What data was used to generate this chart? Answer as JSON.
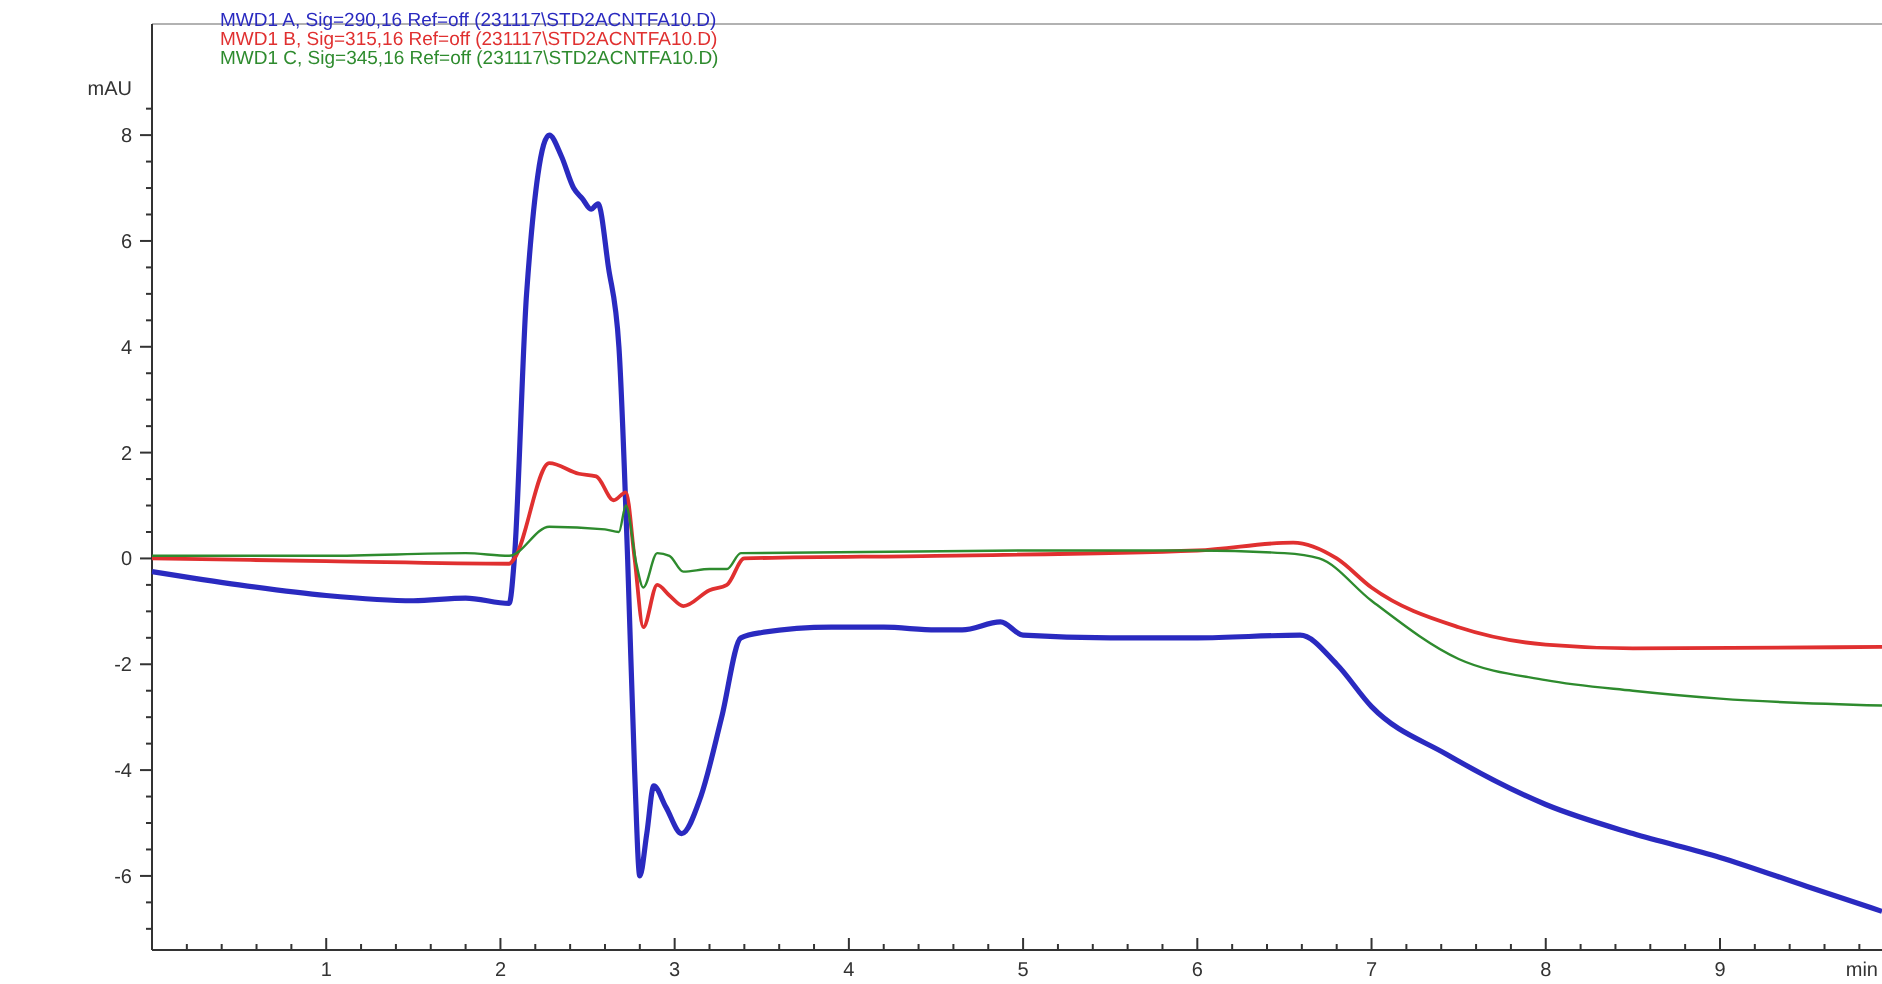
{
  "chart_data": {
    "type": "line",
    "xlabel": "min",
    "ylabel": "mAU",
    "legend": "top left",
    "marker": "none",
    "line_style": "solid",
    "grid": false,
    "xlim": [
      0,
      9.93
    ],
    "ylim": [
      -7.4,
      10.1
    ],
    "xticks": [
      {
        "value": 0.2,
        "label": null
      },
      {
        "value": 0.4,
        "label": null
      },
      {
        "value": 0.6,
        "label": null
      },
      {
        "value": 0.8,
        "label": null
      },
      1,
      {
        "value": 1.2,
        "label": null
      },
      {
        "value": 1.4,
        "label": null
      },
      {
        "value": 1.6,
        "label": null
      },
      {
        "value": 1.8,
        "label": null
      },
      2,
      {
        "value": 2.2,
        "label": null
      },
      {
        "value": 2.4,
        "label": null
      },
      {
        "value": 2.6,
        "label": null
      },
      {
        "value": 2.8,
        "label": null
      },
      3,
      {
        "value": 3.2,
        "label": null
      },
      {
        "value": 3.4,
        "label": null
      },
      {
        "value": 3.6,
        "label": null
      },
      {
        "value": 3.8,
        "label": null
      },
      4,
      {
        "value": 4.2,
        "label": null
      },
      {
        "value": 4.4,
        "label": null
      },
      {
        "value": 4.6,
        "label": null
      },
      {
        "value": 4.8,
        "label": null
      },
      5,
      {
        "value": 5.2,
        "label": null
      },
      {
        "value": 5.4,
        "label": null
      },
      {
        "value": 5.6,
        "label": null
      },
      {
        "value": 5.8,
        "label": null
      },
      6,
      {
        "value": 6.2,
        "label": null
      },
      {
        "value": 6.4,
        "label": null
      },
      {
        "value": 6.6,
        "label": null
      },
      {
        "value": 6.8,
        "label": null
      },
      7,
      {
        "value": 7.2,
        "label": null
      },
      {
        "value": 7.4,
        "label": null
      },
      {
        "value": 7.6,
        "label": null
      },
      {
        "value": 7.8,
        "label": null
      },
      8,
      {
        "value": 8.2,
        "label": null
      },
      {
        "value": 8.4,
        "label": null
      },
      {
        "value": 8.6,
        "label": null
      },
      {
        "value": 8.8,
        "label": null
      },
      9,
      {
        "value": 9.2,
        "label": null
      },
      {
        "value": 9.4,
        "label": null
      },
      {
        "value": 9.6,
        "label": null
      },
      {
        "value": 9.8,
        "label": null
      }
    ],
    "yticks": [
      {
        "value": -7,
        "label": null
      },
      {
        "value": -6.5,
        "label": null
      },
      -6,
      {
        "value": -5.5,
        "label": null
      },
      {
        "value": -5,
        "label": null
      },
      {
        "value": -4.5,
        "label": null
      },
      -4,
      {
        "value": -3.5,
        "label": null
      },
      {
        "value": -3,
        "label": null
      },
      {
        "value": -2.5,
        "label": null
      },
      -2,
      {
        "value": -1.5,
        "label": null
      },
      {
        "value": -1,
        "label": null
      },
      {
        "value": -0.5,
        "label": null
      },
      0,
      {
        "value": 0.5,
        "label": null
      },
      {
        "value": 1,
        "label": null
      },
      {
        "value": 1.5,
        "label": null
      },
      2,
      {
        "value": 2.5,
        "label": null
      },
      {
        "value": 3,
        "label": null
      },
      {
        "value": 3.5,
        "label": null
      },
      4,
      {
        "value": 4.5,
        "label": null
      },
      {
        "value": 5,
        "label": null
      },
      {
        "value": 5.5,
        "label": null
      },
      6,
      {
        "value": 6.5,
        "label": null
      },
      {
        "value": 7,
        "label": null
      },
      {
        "value": 7.5,
        "label": null
      },
      8,
      {
        "value": 8.5,
        "label": null
      }
    ],
    "series": [
      {
        "name": "MWD1 A, Sig=290,16 Ref=off (231117\\STD2ACNTFA10.D)",
        "color": "#2a2ac0",
        "x": [
          0,
          0.5,
          1,
          1.5,
          1.8,
          2.05,
          2.08,
          2.15,
          2.28,
          2.35,
          2.42,
          2.47,
          2.52,
          2.56,
          2.62,
          2.68,
          2.73,
          2.77,
          2.8,
          2.84,
          2.88,
          2.95,
          3.04,
          3.15,
          3.27,
          3.38,
          3.5,
          3.9,
          4.2,
          4.5,
          4.65,
          4.87,
          5.0,
          5.5,
          6.0,
          6.59,
          6.8,
          7.0,
          7.43,
          8.0,
          8.5,
          9.0,
          9.5,
          9.93
        ],
        "values": [
          -0.25,
          -0.5,
          -0.7,
          -0.8,
          -0.75,
          -0.85,
          0,
          5,
          8.0,
          7.6,
          7.0,
          6.8,
          6.6,
          6.7,
          5.5,
          4,
          0,
          -4,
          -6.0,
          -5.2,
          -4.3,
          -4.7,
          -5.2,
          -4.5,
          -3.0,
          -1.5,
          -1.4,
          -1.3,
          -1.3,
          -1.35,
          -1.35,
          -1.2,
          -1.45,
          -1.5,
          -1.5,
          -1.45,
          -2.0,
          -2.8,
          -3.7,
          -4.65,
          -5.2,
          -5.65,
          -6.2,
          -6.67
        ]
      },
      {
        "name": "MWD1 B, Sig=315,16 Ref=off (231117\\STD2ACNTFA10.D)",
        "color": "#e03030",
        "x": [
          0,
          1,
          2.05,
          2.08,
          2.28,
          2.45,
          2.55,
          2.65,
          2.72,
          2.77,
          2.82,
          2.9,
          2.97,
          3.05,
          3.2,
          3.3,
          3.4,
          4.5,
          6.0,
          6.55,
          6.8,
          7.0,
          7.5,
          8.0,
          8.5,
          9.93
        ],
        "values": [
          0,
          -0.05,
          -0.1,
          0,
          1.8,
          1.6,
          1.55,
          1.1,
          1.25,
          0,
          -1.3,
          -0.5,
          -0.7,
          -0.9,
          -0.6,
          -0.5,
          0,
          0.05,
          0.15,
          0.3,
          0,
          -0.55,
          -1.3,
          -1.63,
          -1.7,
          -1.67
        ]
      },
      {
        "name": "MWD1 C, Sig=345,16 Ref=off (231117\\STD2ACNTFA10.D)",
        "color": "#2e8b2e",
        "x": [
          0,
          1,
          1.8,
          2.05,
          2.28,
          2.6,
          2.68,
          2.72,
          2.78,
          2.82,
          2.9,
          2.97,
          3.05,
          3.2,
          3.3,
          3.38,
          5.0,
          6.0,
          6.5,
          6.7,
          7.0,
          7.5,
          8.0,
          8.5,
          9.0,
          9.93
        ],
        "values": [
          0.05,
          0.05,
          0.1,
          0.05,
          0.6,
          0.55,
          0.5,
          1.0,
          -0.1,
          -0.55,
          0.1,
          0.05,
          -0.25,
          -0.2,
          -0.2,
          0.1,
          0.15,
          0.15,
          0.1,
          0,
          -0.8,
          -1.9,
          -2.3,
          -2.5,
          -2.65,
          -2.78
        ]
      }
    ]
  }
}
